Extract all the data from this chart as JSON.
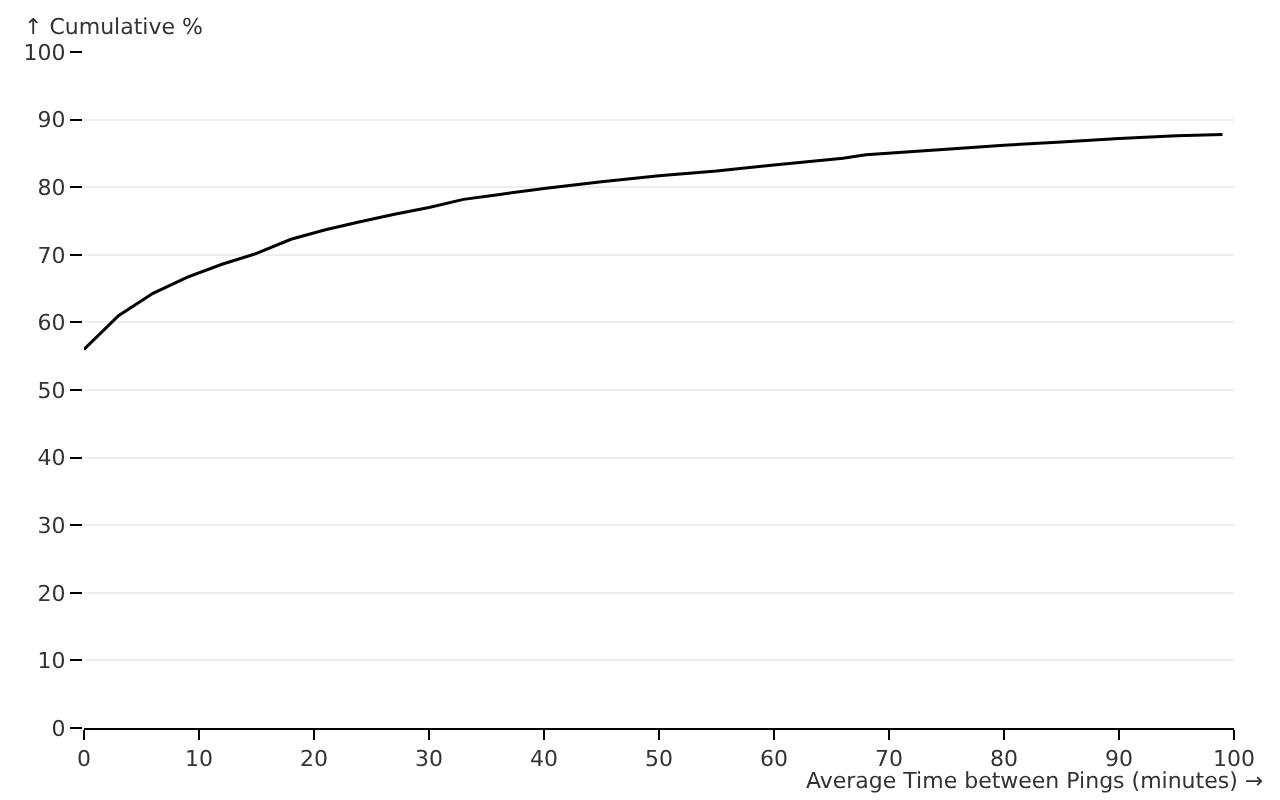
{
  "chart_data": {
    "type": "line",
    "xlabel": "Average Time between Pings (minutes) →",
    "ylabel": "↑ Cumulative %",
    "x": [
      0,
      3,
      6,
      9,
      12,
      15,
      18,
      21,
      24,
      27,
      30,
      33,
      36,
      40,
      45,
      50,
      55,
      60,
      66,
      68,
      75,
      80,
      85,
      90,
      95,
      99
    ],
    "series": [
      {
        "color": "#000000",
        "values": [
          56,
          61,
          64.3,
          66.7,
          68.6,
          70.2,
          72.3,
          73.7,
          74.9,
          76,
          77,
          78.2,
          78.9,
          79.8,
          80.8,
          81.7,
          82.4,
          83.3,
          84.3,
          84.8,
          85.6,
          86.2,
          86.7,
          87.2,
          87.6,
          87.8
        ]
      }
    ],
    "xlim": [
      0,
      100
    ],
    "xticks": [
      0,
      10,
      20,
      30,
      40,
      50,
      60,
      70,
      80,
      90,
      100
    ],
    "ylim": [
      0,
      100
    ],
    "yticks": [
      0,
      10,
      20,
      30,
      40,
      50,
      60,
      70,
      80,
      90,
      100
    ],
    "grid": "y",
    "marker": "none",
    "line_style": "solid"
  }
}
